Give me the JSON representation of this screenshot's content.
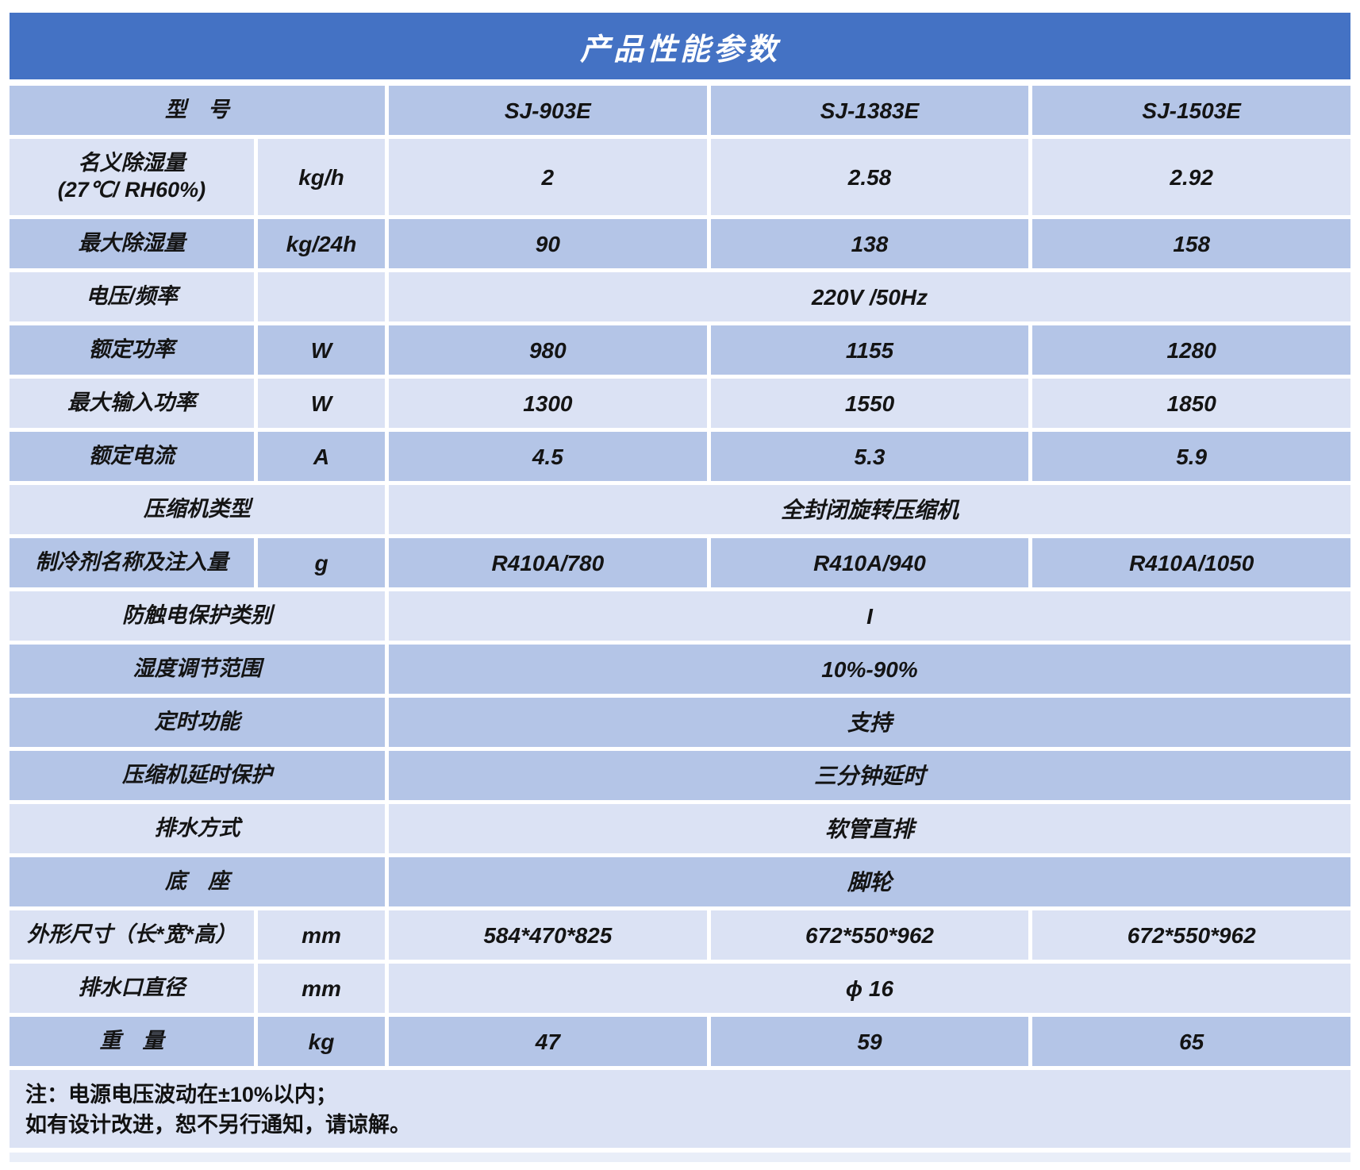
{
  "title": "产品性能参数",
  "colors": {
    "header_bg": "#4472c4",
    "row_dark": "#b4c5e7",
    "row_light": "#dbe2f4",
    "strip_bg": "#e9eef8"
  },
  "table": {
    "models": [
      "SJ-903E",
      "SJ-1383E",
      "SJ-1503E"
    ],
    "rows": [
      {
        "label": "型　号",
        "unit": null,
        "values": [
          "SJ-903E",
          "SJ-1383E",
          "SJ-1503E"
        ],
        "merged": null,
        "shade": "dark",
        "tall": false
      },
      {
        "label": "名义除湿量",
        "label2": "(27℃/ RH60%)",
        "unit": "kg/h",
        "values": [
          "2",
          "2.58",
          "2.92"
        ],
        "merged": null,
        "shade": "light",
        "tall": true
      },
      {
        "label": "最大除湿量",
        "unit": "kg/24h",
        "values": [
          "90",
          "138",
          "158"
        ],
        "merged": null,
        "shade": "dark",
        "tall": false
      },
      {
        "label": "电压/频率",
        "unit": "",
        "values": null,
        "merged": "220V /50Hz",
        "shade": "light",
        "tall": false
      },
      {
        "label": "额定功率",
        "unit": "W",
        "values": [
          "980",
          "1155",
          "1280"
        ],
        "merged": null,
        "shade": "dark",
        "tall": false
      },
      {
        "label": "最大输入功率",
        "unit": "W",
        "values": [
          "1300",
          "1550",
          "1850"
        ],
        "merged": null,
        "shade": "light",
        "tall": false
      },
      {
        "label": "额定电流",
        "unit": "A",
        "values": [
          "4.5",
          "5.3",
          "5.9"
        ],
        "merged": null,
        "shade": "dark",
        "tall": false
      },
      {
        "label": "压缩机类型",
        "unit": null,
        "values": null,
        "merged": "全封闭旋转压缩机",
        "shade": "light",
        "tall": false
      },
      {
        "label": "制冷剂名称及注入量",
        "unit": "g",
        "values": [
          "R410A/780",
          "R410A/940",
          "R410A/1050"
        ],
        "merged": null,
        "shade": "dark",
        "tall": false
      },
      {
        "label": "防触电保护类别",
        "unit": null,
        "values": null,
        "merged": "I",
        "shade": "light",
        "tall": false
      },
      {
        "label": "湿度调节范围",
        "unit": null,
        "values": null,
        "merged": "10%-90%",
        "shade": "dark",
        "tall": false
      },
      {
        "label": "定时功能",
        "unit": null,
        "values": null,
        "merged": "支持",
        "shade": "dark",
        "tall": false
      },
      {
        "label": "压缩机延时保护",
        "unit": null,
        "values": null,
        "merged": "三分钟延时",
        "shade": "dark",
        "tall": false
      },
      {
        "label": "排水方式",
        "unit": null,
        "values": null,
        "merged": "软管直排",
        "shade": "light",
        "tall": false
      },
      {
        "label": "底　座",
        "unit": null,
        "values": null,
        "merged": "脚轮",
        "shade": "dark",
        "tall": false
      },
      {
        "label": "外形尺寸（长*宽*高）",
        "unit": "mm",
        "values": [
          "584*470*825",
          "672*550*962",
          "672*550*962"
        ],
        "merged": null,
        "shade": "light",
        "tall": false
      },
      {
        "label": "排水口直径",
        "unit": "mm",
        "values": null,
        "merged": "ϕ 16",
        "shade": "light",
        "tall": false
      },
      {
        "label": "重　量",
        "unit": "kg",
        "values": [
          "47",
          "59",
          "65"
        ],
        "merged": null,
        "shade": "dark",
        "tall": false
      }
    ]
  },
  "footer": {
    "line1": "注：电源电压波动在±10%以内；",
    "line2": "如有设计改进，恕不另行通知，请谅解。"
  }
}
